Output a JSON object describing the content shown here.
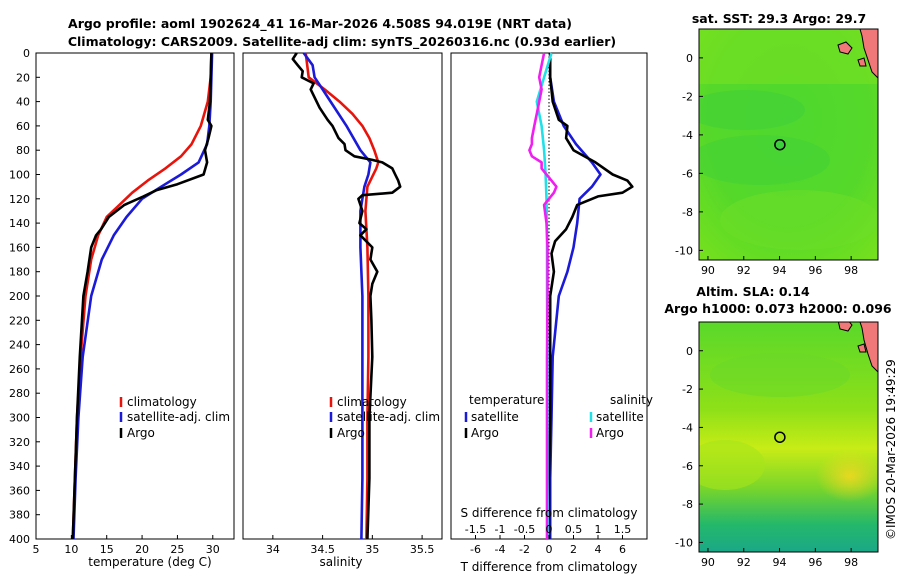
{
  "title": {
    "line1": "Argo profile: aoml 1902624_41 16-Mar-2026 4.508S 94.019E (NRT data)",
    "line2": "Climatology: CARS2009. Satellite-adj clim: synTS_20260316.nc (0.93d earlier)"
  },
  "credit": "©IMOS 20-Mar-2026 19:49:29",
  "colors": {
    "red": "#e8140c",
    "blue": "#1a1ad8",
    "black": "#000000",
    "cyan": "#22e0e8",
    "magenta": "#f01ef0"
  },
  "chart_data": [
    {
      "type": "line",
      "id": "temperature",
      "xlabel": "temperature (deg C)",
      "ylabel": "",
      "xlim": [
        5,
        33
      ],
      "ylim": [
        0,
        400
      ],
      "xticks": [
        "5",
        "10",
        "15",
        "20",
        "25",
        "30"
      ],
      "yticks": [
        "0",
        "20",
        "40",
        "60",
        "80",
        "100",
        "120",
        "140",
        "160",
        "180",
        "200",
        "220",
        "240",
        "260",
        "280",
        "300",
        "320",
        "340",
        "360",
        "380",
        "400"
      ],
      "legend": [
        "climatology",
        "satellite-adj. clim",
        "Argo"
      ],
      "series": [
        {
          "name": "climatology",
          "color": "red",
          "depth": [
            0,
            20,
            40,
            60,
            75,
            85,
            95,
            105,
            115,
            125,
            135,
            150,
            170,
            200,
            250,
            300,
            350,
            400
          ],
          "values": [
            29.8,
            29.7,
            29.3,
            28.3,
            27.0,
            25.5,
            23.3,
            20.8,
            18.6,
            16.8,
            15.0,
            13.8,
            12.8,
            12.0,
            11.3,
            10.8,
            10.5,
            10.2
          ]
        },
        {
          "name": "satellite-adj. clim",
          "color": "blue",
          "depth": [
            0,
            20,
            40,
            60,
            75,
            90,
            100,
            110,
            120,
            135,
            150,
            170,
            200,
            250,
            300,
            350,
            400
          ],
          "values": [
            29.9,
            29.8,
            29.7,
            29.5,
            29.2,
            28.0,
            25.5,
            22.7,
            20.0,
            17.8,
            16.0,
            14.3,
            12.8,
            11.6,
            11.0,
            10.6,
            10.3
          ]
        },
        {
          "name": "Argo",
          "color": "black",
          "depth": [
            0,
            20,
            40,
            55,
            60,
            70,
            80,
            90,
            100,
            108,
            113,
            118,
            125,
            135,
            145,
            150,
            160,
            180,
            200,
            250,
            300,
            350,
            400
          ],
          "values": [
            29.8,
            29.7,
            29.6,
            29.3,
            29.8,
            29.4,
            28.9,
            29.2,
            28.7,
            25.0,
            22.0,
            20.2,
            17.5,
            15.3,
            14.2,
            13.5,
            12.8,
            12.3,
            11.7,
            11.2,
            10.8,
            10.5,
            10.2
          ]
        }
      ]
    },
    {
      "type": "line",
      "id": "salinity",
      "xlabel": "salinity",
      "xlim": [
        33.7,
        35.7
      ],
      "ylim": [
        0,
        400
      ],
      "xticks": [
        "34",
        "34.5",
        "35",
        "35.5"
      ],
      "legend": [
        "climatology",
        "satellite-adj. clim",
        "Argo"
      ],
      "series": [
        {
          "name": "climatology",
          "color": "red",
          "depth": [
            0,
            20,
            30,
            40,
            50,
            60,
            70,
            80,
            90,
            95,
            110,
            130,
            160,
            200,
            250,
            300,
            350,
            400
          ],
          "values": [
            34.33,
            34.36,
            34.52,
            34.67,
            34.8,
            34.9,
            34.97,
            35.02,
            35.06,
            35.04,
            34.95,
            34.93,
            34.95,
            34.96,
            34.96,
            34.95,
            34.95,
            34.94
          ]
        },
        {
          "name": "satellite-adj. clim",
          "color": "blue",
          "depth": [
            0,
            10,
            20,
            30,
            40,
            60,
            80,
            90,
            100,
            110,
            130,
            160,
            200,
            250,
            300,
            350,
            400
          ],
          "values": [
            34.31,
            34.4,
            34.42,
            34.5,
            34.58,
            34.74,
            34.88,
            34.98,
            34.96,
            34.92,
            34.88,
            34.88,
            34.9,
            34.9,
            34.9,
            34.9,
            34.89
          ]
        },
        {
          "name": "Argo",
          "color": "black",
          "depth": [
            0,
            5,
            10,
            15,
            20,
            25,
            30,
            40,
            45,
            55,
            60,
            70,
            75,
            80,
            85,
            88,
            90,
            95,
            100,
            105,
            110,
            115,
            117,
            120,
            125,
            130,
            140,
            145,
            150,
            160,
            170,
            180,
            190,
            200,
            220,
            250,
            300,
            350,
            400
          ],
          "values": [
            34.24,
            34.2,
            34.25,
            34.3,
            34.29,
            34.41,
            34.38,
            34.44,
            34.47,
            34.55,
            34.6,
            34.66,
            34.72,
            34.73,
            34.82,
            35.0,
            35.1,
            35.2,
            35.23,
            35.26,
            35.28,
            35.2,
            34.9,
            34.86,
            34.88,
            34.9,
            34.87,
            34.94,
            34.88,
            35.0,
            34.98,
            35.05,
            35.0,
            34.98,
            34.99,
            35.0,
            34.97,
            34.97,
            34.95
          ]
        }
      ]
    },
    {
      "type": "line",
      "id": "difference",
      "xlabel": "T difference from climatology",
      "xlabel_top": "S difference from climatology",
      "xlim": [
        -8,
        8
      ],
      "ylim": [
        0,
        400
      ],
      "xticks": [
        "-6",
        "-4",
        "-2",
        "0",
        "2",
        "4",
        "6"
      ],
      "xticks_top": [
        "-1.5",
        "-1",
        "-0.5",
        "0",
        "0.5",
        "1",
        "1.5"
      ],
      "legend_headers": [
        "temperature",
        "salinity"
      ],
      "legend": [
        "satellite",
        "Argo",
        "satellite",
        "Argo"
      ],
      "series": [
        {
          "name": "temperature satellite",
          "color": "blue",
          "depth": [
            0,
            20,
            40,
            60,
            75,
            90,
            100,
            110,
            120,
            140,
            160,
            180,
            200,
            250,
            300,
            350,
            400
          ],
          "values": [
            0.1,
            0.1,
            0.4,
            1.2,
            2.2,
            3.5,
            4.2,
            3.5,
            2.5,
            2.3,
            2.0,
            1.5,
            0.8,
            0.3,
            0.2,
            0.1,
            0.1
          ]
        },
        {
          "name": "temperature Argo",
          "color": "black",
          "depth": [
            0,
            20,
            40,
            55,
            60,
            70,
            80,
            90,
            100,
            105,
            110,
            115,
            118,
            125,
            135,
            145,
            155,
            165,
            180,
            200,
            250,
            300,
            350,
            400
          ],
          "values": [
            0.1,
            0.1,
            0.3,
            0.8,
            1.5,
            1.4,
            2.0,
            3.8,
            5.2,
            6.4,
            6.8,
            6.0,
            4.0,
            2.3,
            1.9,
            1.4,
            0.5,
            0.2,
            0.4,
            0.1,
            0.1,
            0.1,
            0.0,
            0.0
          ]
        },
        {
          "name": "salinity satellite",
          "color": "cyan",
          "depth": [
            0,
            20,
            40,
            60,
            80,
            100,
            120,
            150,
            200,
            250,
            300,
            350,
            400
          ],
          "values": [
            0.05,
            -0.1,
            -0.25,
            -0.15,
            -0.1,
            -0.07,
            -0.05,
            -0.04,
            -0.04,
            -0.03,
            -0.03,
            -0.03,
            -0.02
          ]
        },
        {
          "name": "salinity Argo",
          "color": "magenta",
          "depth": [
            0,
            10,
            20,
            30,
            40,
            50,
            60,
            70,
            75,
            80,
            85,
            90,
            95,
            100,
            105,
            110,
            115,
            120,
            125,
            140,
            160,
            200,
            250,
            300,
            350,
            400
          ],
          "values": [
            -0.1,
            -0.15,
            -0.2,
            -0.15,
            -0.2,
            -0.25,
            -0.3,
            -0.35,
            -0.35,
            -0.4,
            -0.35,
            -0.15,
            -0.15,
            -0.05,
            0.05,
            0.15,
            0.1,
            0.0,
            -0.1,
            -0.05,
            -0.03,
            -0.03,
            -0.04,
            -0.04,
            -0.04,
            -0.04
          ]
        }
      ]
    },
    {
      "type": "heatmap",
      "id": "sst-map",
      "title": "sat. SST: 29.3 Argo: 29.7",
      "xlim": [
        89.5,
        99.5
      ],
      "ylim": [
        -10.5,
        1.5
      ],
      "xticks": [
        "90",
        "92",
        "94",
        "96",
        "98"
      ],
      "yticks": [
        "0",
        "-2",
        "-4",
        "-6",
        "-8",
        "-10"
      ],
      "argo_position": [
        94.019,
        -4.508
      ]
    },
    {
      "type": "heatmap",
      "id": "sla-map",
      "title_line1": "Altim. SLA: 0.14",
      "title_line2": "Argo h1000: 0.073 h2000: 0.096",
      "xlim": [
        89.5,
        99.5
      ],
      "ylim": [
        -10.5,
        1.5
      ],
      "xticks": [
        "90",
        "92",
        "94",
        "96",
        "98"
      ],
      "yticks": [
        "0",
        "-2",
        "-4",
        "-6",
        "-8",
        "-10"
      ],
      "argo_position": [
        94.019,
        -4.508
      ]
    }
  ]
}
